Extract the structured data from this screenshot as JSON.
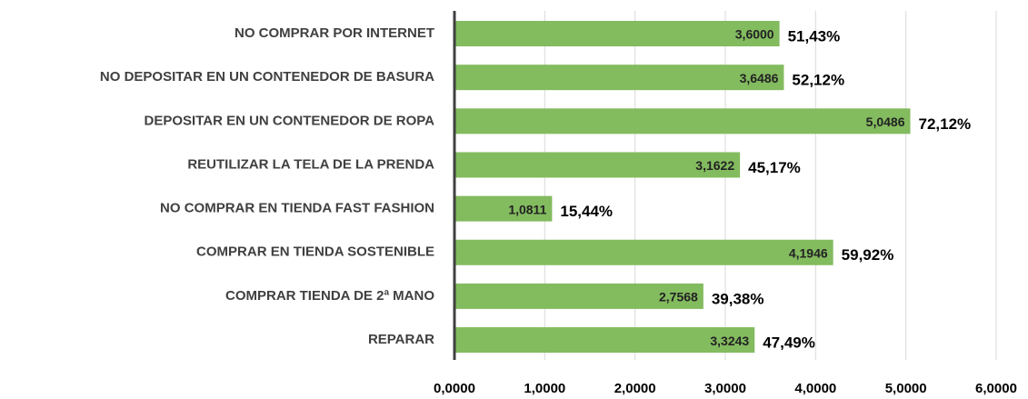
{
  "chart_data": {
    "type": "bar",
    "orientation": "horizontal",
    "categories": [
      "NO COMPRAR POR INTERNET",
      "NO DEPOSITAR EN UN CONTENEDOR DE BASURA",
      "DEPOSITAR EN UN CONTENEDOR DE ROPA",
      "REUTILIZAR LA TELA DE LA PRENDA",
      "NO COMPRAR EN TIENDA FAST FASHION",
      "COMPRAR EN TIENDA SOSTENIBLE",
      "COMPRAR TIENDA DE 2ª MANO",
      "REPARAR"
    ],
    "values": [
      3.6,
      3.6486,
      5.0486,
      3.1622,
      1.0811,
      4.1946,
      2.7568,
      3.3243
    ],
    "value_labels": [
      "3,6000",
      "3,6486",
      "5,0486",
      "3,1622",
      "1,0811",
      "4,1946",
      "2,7568",
      "3,3243"
    ],
    "percentage_labels": [
      "51,43%",
      "52,12%",
      "72,12%",
      "45,17%",
      "15,44%",
      "59,92%",
      "39,38%",
      "47,49%"
    ],
    "color": "#83bb5f",
    "xlim": [
      0,
      6
    ],
    "xticks": [
      {
        "value": 0,
        "label": "0,0000"
      },
      {
        "value": 1,
        "label": "1,0000"
      },
      {
        "value": 2,
        "label": "2,0000"
      },
      {
        "value": 3,
        "label": "3,0000"
      },
      {
        "value": 4,
        "label": "4,0000"
      },
      {
        "value": 5,
        "label": "5,0000"
      },
      {
        "value": 6,
        "label": "6,0000"
      }
    ],
    "grid": true
  }
}
